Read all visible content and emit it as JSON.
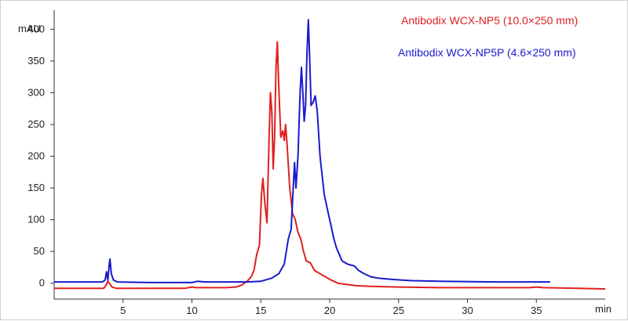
{
  "chart_data": {
    "type": "line",
    "title": "",
    "xlabel": "min",
    "ylabel": "mAU",
    "xlim": [
      0,
      40
    ],
    "ylim": [
      -25,
      430
    ],
    "x_ticks": [
      5,
      10,
      15,
      20,
      25,
      30,
      35
    ],
    "y_ticks": [
      0,
      50,
      100,
      150,
      200,
      250,
      300,
      350,
      400
    ],
    "grid": false,
    "legend_position": "top-right",
    "series": [
      {
        "name": "Antibodix WCX-NP5 (10.0×250 mm)",
        "color": "#e02020",
        "points": [
          [
            0,
            -8
          ],
          [
            3.6,
            -8
          ],
          [
            3.8,
            -2
          ],
          [
            3.9,
            3
          ],
          [
            4.0,
            0
          ],
          [
            4.2,
            -6
          ],
          [
            4.5,
            -8
          ],
          [
            9.5,
            -8
          ],
          [
            10.0,
            -6
          ],
          [
            10.3,
            -7
          ],
          [
            12.5,
            -7
          ],
          [
            13.2,
            -6
          ],
          [
            13.6,
            -3
          ],
          [
            14.0,
            3
          ],
          [
            14.3,
            10
          ],
          [
            14.5,
            20
          ],
          [
            14.7,
            45
          ],
          [
            14.9,
            60
          ],
          [
            15.05,
            140
          ],
          [
            15.15,
            165
          ],
          [
            15.3,
            125
          ],
          [
            15.45,
            95
          ],
          [
            15.6,
            230
          ],
          [
            15.7,
            300
          ],
          [
            15.8,
            270
          ],
          [
            15.9,
            180
          ],
          [
            16.0,
            230
          ],
          [
            16.1,
            340
          ],
          [
            16.2,
            380
          ],
          [
            16.3,
            310
          ],
          [
            16.45,
            230
          ],
          [
            16.6,
            240
          ],
          [
            16.7,
            225
          ],
          [
            16.8,
            250
          ],
          [
            16.9,
            220
          ],
          [
            17.1,
            150
          ],
          [
            17.3,
            110
          ],
          [
            17.5,
            100
          ],
          [
            17.7,
            80
          ],
          [
            17.9,
            70
          ],
          [
            18.1,
            50
          ],
          [
            18.3,
            35
          ],
          [
            18.6,
            32
          ],
          [
            18.9,
            20
          ],
          [
            19.3,
            15
          ],
          [
            19.7,
            10
          ],
          [
            20.1,
            5
          ],
          [
            20.6,
            0
          ],
          [
            21.2,
            -2
          ],
          [
            22.0,
            -4
          ],
          [
            23.0,
            -5
          ],
          [
            25.0,
            -6
          ],
          [
            28.0,
            -7
          ],
          [
            31.0,
            -7
          ],
          [
            34.5,
            -7
          ],
          [
            35.0,
            -6
          ],
          [
            35.5,
            -7
          ],
          [
            38.0,
            -8
          ],
          [
            39.9,
            -9
          ],
          [
            40.0,
            -9
          ]
        ]
      },
      {
        "name": "Antibodix WCX-NP5P (4.6×250 mm)",
        "color": "#1a1acc",
        "points": [
          [
            0,
            2
          ],
          [
            3.5,
            2
          ],
          [
            3.7,
            5
          ],
          [
            3.8,
            18
          ],
          [
            3.9,
            5
          ],
          [
            4.0,
            30
          ],
          [
            4.05,
            38
          ],
          [
            4.15,
            15
          ],
          [
            4.3,
            5
          ],
          [
            4.6,
            2
          ],
          [
            7.0,
            1
          ],
          [
            10.0,
            1
          ],
          [
            10.4,
            3
          ],
          [
            11.0,
            2
          ],
          [
            14.0,
            2
          ],
          [
            15.0,
            3
          ],
          [
            15.8,
            8
          ],
          [
            16.3,
            15
          ],
          [
            16.7,
            30
          ],
          [
            17.0,
            70
          ],
          [
            17.2,
            85
          ],
          [
            17.35,
            150
          ],
          [
            17.45,
            190
          ],
          [
            17.55,
            150
          ],
          [
            17.7,
            200
          ],
          [
            17.85,
            300
          ],
          [
            17.95,
            340
          ],
          [
            18.05,
            300
          ],
          [
            18.15,
            255
          ],
          [
            18.25,
            280
          ],
          [
            18.35,
            360
          ],
          [
            18.45,
            415
          ],
          [
            18.55,
            350
          ],
          [
            18.65,
            280
          ],
          [
            18.8,
            285
          ],
          [
            18.95,
            295
          ],
          [
            19.1,
            270
          ],
          [
            19.3,
            200
          ],
          [
            19.6,
            140
          ],
          [
            19.9,
            110
          ],
          [
            20.1,
            90
          ],
          [
            20.3,
            70
          ],
          [
            20.5,
            55
          ],
          [
            20.7,
            45
          ],
          [
            20.9,
            35
          ],
          [
            21.3,
            30
          ],
          [
            21.8,
            27
          ],
          [
            22.1,
            20
          ],
          [
            22.5,
            15
          ],
          [
            23.0,
            10
          ],
          [
            23.5,
            8
          ],
          [
            24.5,
            6
          ],
          [
            26.0,
            4
          ],
          [
            28.0,
            3
          ],
          [
            32.0,
            2
          ],
          [
            36.0,
            2
          ]
        ]
      }
    ]
  }
}
